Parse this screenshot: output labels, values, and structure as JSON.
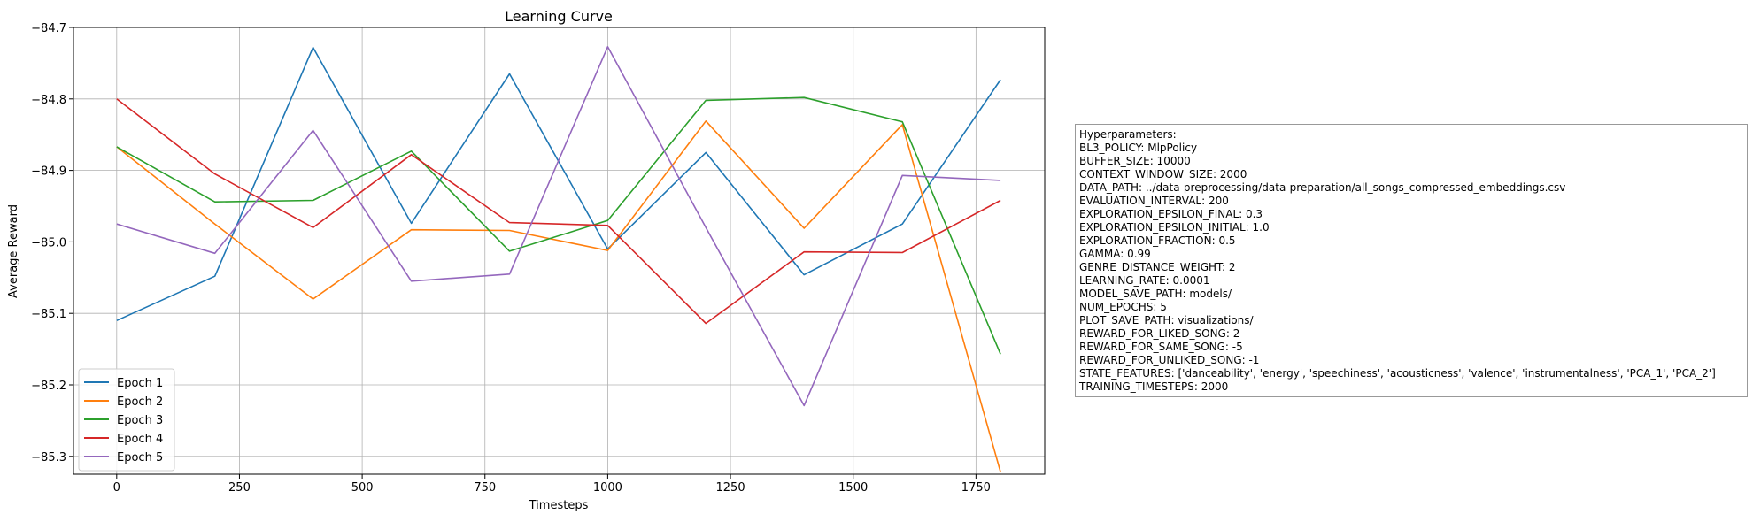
{
  "chart_data": {
    "type": "line",
    "title": "Learning Curve",
    "xlabel": "Timesteps",
    "ylabel": "Average Reward",
    "xlim": [
      -88,
      1890
    ],
    "ylim": [
      -85.325,
      -84.7
    ],
    "x_ticks": [
      0,
      250,
      500,
      750,
      1000,
      1250,
      1500,
      1750
    ],
    "x_tick_labels": [
      "0",
      "250",
      "500",
      "750",
      "1000",
      "1250",
      "1500",
      "1750"
    ],
    "y_ticks": [
      -84.7,
      -84.8,
      -84.9,
      -85.0,
      -85.1,
      -85.2,
      -85.3
    ],
    "y_tick_labels": [
      "−84.7",
      "−84.8",
      "−84.9",
      "−85.0",
      "−85.1",
      "−85.2",
      "−85.3"
    ],
    "grid": true,
    "legend_position": "lower-left",
    "x": [
      0,
      200,
      400,
      600,
      800,
      1000,
      1200,
      1400,
      1600,
      1800
    ],
    "series": [
      {
        "name": "Epoch 1",
        "color": "#1f77b4",
        "values": [
          -85.11,
          -85.048,
          -84.728,
          -84.974,
          -84.765,
          -85.01,
          -84.875,
          -85.046,
          -84.975,
          -84.773
        ]
      },
      {
        "name": "Epoch 2",
        "color": "#ff7f0e",
        "values": [
          -84.867,
          -84.975,
          -85.08,
          -84.983,
          -84.984,
          -85.012,
          -84.831,
          -84.981,
          -84.836,
          -85.322
        ]
      },
      {
        "name": "Epoch 3",
        "color": "#2ca02c",
        "values": [
          -84.867,
          -84.944,
          -84.942,
          -84.873,
          -85.013,
          -84.97,
          -84.802,
          -84.798,
          -84.832,
          -85.157
        ]
      },
      {
        "name": "Epoch 4",
        "color": "#d62728",
        "values": [
          -84.8,
          -84.905,
          -84.98,
          -84.878,
          -84.973,
          -84.977,
          -85.114,
          -85.014,
          -85.015,
          -84.942
        ]
      },
      {
        "name": "Epoch 5",
        "color": "#9467bd",
        "values": [
          -84.975,
          -85.016,
          -84.844,
          -85.055,
          -85.045,
          -84.727,
          -84.98,
          -85.229,
          -84.907,
          -84.914
        ]
      }
    ]
  },
  "hyperparameters": {
    "heading": "Hyperparameters:",
    "lines": [
      "BL3_POLICY: MlpPolicy",
      "BUFFER_SIZE: 10000",
      "CONTEXT_WINDOW_SIZE: 2000",
      "DATA_PATH: ../data-preprocessing/data-preparation/all_songs_compressed_embeddings.csv",
      "EVALUATION_INTERVAL: 200",
      "EXPLORATION_EPSILON_FINAL: 0.3",
      "EXPLORATION_EPSILON_INITIAL: 1.0",
      "EXPLORATION_FRACTION: 0.5",
      "GAMMA: 0.99",
      "GENRE_DISTANCE_WEIGHT: 2",
      "LEARNING_RATE: 0.0001",
      "MODEL_SAVE_PATH: models/",
      "NUM_EPOCHS: 5",
      "PLOT_SAVE_PATH: visualizations/",
      "REWARD_FOR_LIKED_SONG: 2",
      "REWARD_FOR_SAME_SONG: -5",
      "REWARD_FOR_UNLIKED_SONG: -1",
      "STATE_FEATURES: ['danceability', 'energy', 'speechiness', 'acousticness', 'valence', 'instrumentalness', 'PCA_1', 'PCA_2']",
      "TRAINING_TIMESTEPS: 2000"
    ]
  }
}
